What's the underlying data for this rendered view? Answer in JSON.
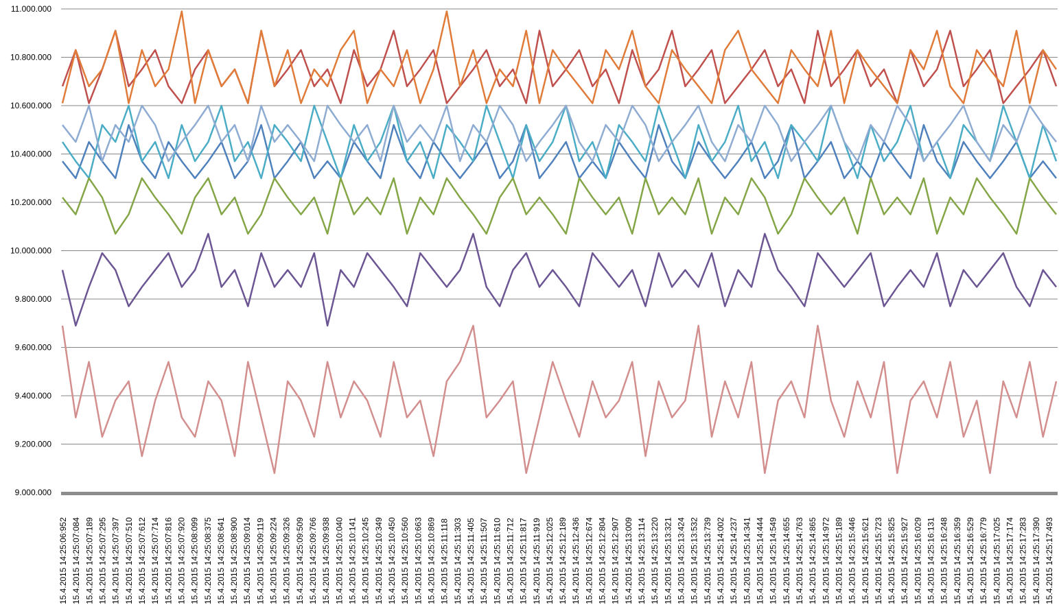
{
  "chart_data": {
    "type": "line",
    "title": "",
    "xlabel": "",
    "ylabel": "",
    "ylim": [
      9000000,
      11000000
    ],
    "grid": true,
    "legend": "none",
    "y_ticks": [
      "9.000.000",
      "9.200.000",
      "9.400.000",
      "9.600.000",
      "9.800.000",
      "10.000.000",
      "10.200.000",
      "10.400.000",
      "10.600.000",
      "10.800.000",
      "11.000.000"
    ],
    "y_tick_values": [
      9000000,
      9200000,
      9400000,
      9600000,
      9800000,
      10000000,
      10200000,
      10400000,
      10600000,
      10800000,
      11000000
    ],
    "x_ticks": [
      "15.4.2015 14:25:06:952",
      "15.4.2015 14:25:07:084",
      "15.4.2015 14:25:07:189",
      "15.4.2015 14:25:07:295",
      "15.4.2015 14:25:07:397",
      "15.4.2015 14:25:07:510",
      "15.4.2015 14:25:07:612",
      "15.4.2015 14:25:07:714",
      "15.4.2015 14:25:07:816",
      "15.4.2015 14:25:07:920",
      "15.4.2015 14:25:08:099",
      "15.4.2015 14:25:08:375",
      "15.4.2015 14:25:08:641",
      "15.4.2015 14:25:08:900",
      "15.4.2015 14:25:09:014",
      "15.4.2015 14:25:09:119",
      "15.4.2015 14:25:09:224",
      "15.4.2015 14:25:09:326",
      "15.4.2015 14:25:09:509",
      "15.4.2015 14:25:09:766",
      "15.4.2015 14:25:09:938",
      "15.4.2015 14:25:10:040",
      "15.4.2015 14:25:10:141",
      "15.4.2015 14:25:10:245",
      "15.4.2015 14:25:10:349",
      "15.4.2015 14:25:10:450",
      "15.4.2015 14:25:10:560",
      "15.4.2015 14:25:10:663",
      "15.4.2015 14:25:10:869",
      "15.4.2015 14:25:11:118",
      "15.4.2015 14:25:11:303",
      "15.4.2015 14:25:11:405",
      "15.4.2015 14:25:11:507",
      "15.4.2015 14:25:11:610",
      "15.4.2015 14:25:11:712",
      "15.4.2015 14:25:11:817",
      "15.4.2015 14:25:11:919",
      "15.4.2015 14:25:12:025",
      "15.4.2015 14:25:12:189",
      "15.4.2015 14:25:12:436",
      "15.4.2015 14:25:12:674",
      "15.4.2015 14:25:12:804",
      "15.4.2015 14:25:12:907",
      "15.4.2015 14:25:13:009",
      "15.4.2015 14:25:13:114",
      "15.4.2015 14:25:13:220",
      "15.4.2015 14:25:13:321",
      "15.4.2015 14:25:13:424",
      "15.4.2015 14:25:13:532",
      "15.4.2015 14:25:13:739",
      "15.4.2015 14:25:14:002",
      "15.4.2015 14:25:14:237",
      "15.4.2015 14:25:14:341",
      "15.4.2015 14:25:14:444",
      "15.4.2015 14:25:14:549",
      "15.4.2015 14:25:14:655",
      "15.4.2015 14:25:14:763",
      "15.4.2015 14:25:14:865",
      "15.4.2015 14:25:14:972",
      "15.4.2015 14:25:15:189",
      "15.4.2015 14:25:15:446",
      "15.4.2015 14:25:15:621",
      "15.4.2015 14:25:15:723",
      "15.4.2015 14:25:15:825",
      "15.4.2015 14:25:15:927",
      "15.4.2015 14:25:16:029",
      "15.4.2015 14:25:16:131",
      "15.4.2015 14:25:16:248",
      "15.4.2015 14:25:16:359",
      "15.4.2015 14:25:16:529",
      "15.4.2015 14:25:16:779",
      "15.4.2015 14:25:17:025",
      "15.4.2015 14:25:17:174",
      "15.4.2015 14:25:17:283",
      "15.4.2015 14:25:17:390",
      "15.4.2015 14:25:17:493"
    ],
    "series": [
      {
        "color": "#c0504d",
        "values": [
          10680000,
          10830000,
          10610000,
          10750000,
          10910000,
          10680000,
          10750000,
          10830000,
          10680000,
          10610000,
          10750000,
          10830000,
          10680000,
          10750000,
          10610000,
          10910000,
          10680000,
          10750000,
          10830000,
          10680000,
          10750000,
          10610000,
          10830000,
          10680000,
          10750000,
          10910000,
          10680000,
          10750000,
          10830000,
          10610000,
          10680000,
          10750000,
          10830000,
          10680000,
          10750000,
          10610000,
          10910000,
          10680000,
          10750000,
          10830000,
          10680000,
          10750000,
          10610000,
          10830000,
          10680000,
          10750000,
          10910000,
          10680000,
          10750000,
          10830000,
          10610000,
          10680000,
          10750000,
          10830000,
          10680000,
          10750000,
          10610000,
          10910000,
          10680000,
          10750000,
          10830000,
          10680000,
          10750000,
          10610000,
          10830000,
          10680000,
          10750000,
          10910000,
          10680000,
          10750000,
          10830000,
          10610000,
          10680000,
          10750000,
          10830000,
          10680000
        ]
      },
      {
        "color": "#e07b39",
        "values": [
          10610000,
          10830000,
          10680000,
          10750000,
          10910000,
          10610000,
          10830000,
          10680000,
          10750000,
          10990000,
          10610000,
          10830000,
          10680000,
          10750000,
          10610000,
          10910000,
          10680000,
          10830000,
          10610000,
          10750000,
          10680000,
          10830000,
          10910000,
          10610000,
          10750000,
          10680000,
          10830000,
          10610000,
          10750000,
          10990000,
          10680000,
          10830000,
          10610000,
          10750000,
          10680000,
          10910000,
          10610000,
          10830000,
          10750000,
          10680000,
          10610000,
          10830000,
          10750000,
          10910000,
          10680000,
          10610000,
          10830000,
          10750000,
          10680000,
          10610000,
          10830000,
          10910000,
          10750000,
          10680000,
          10610000,
          10830000,
          10750000,
          10680000,
          10910000,
          10610000,
          10830000,
          10750000,
          10680000,
          10610000,
          10830000,
          10750000,
          10910000,
          10680000,
          10610000,
          10830000,
          10750000,
          10680000,
          10910000,
          10610000,
          10830000,
          10750000
        ]
      },
      {
        "color": "#4f81bd",
        "values": [
          10370000,
          10300000,
          10450000,
          10370000,
          10300000,
          10520000,
          10370000,
          10300000,
          10450000,
          10370000,
          10300000,
          10370000,
          10450000,
          10300000,
          10370000,
          10520000,
          10300000,
          10370000,
          10450000,
          10300000,
          10370000,
          10300000,
          10450000,
          10370000,
          10300000,
          10520000,
          10370000,
          10300000,
          10450000,
          10370000,
          10300000,
          10370000,
          10450000,
          10300000,
          10370000,
          10520000,
          10300000,
          10370000,
          10450000,
          10300000,
          10370000,
          10300000,
          10450000,
          10370000,
          10300000,
          10520000,
          10370000,
          10300000,
          10450000,
          10370000,
          10300000,
          10370000,
          10450000,
          10300000,
          10370000,
          10520000,
          10300000,
          10370000,
          10450000,
          10300000,
          10370000,
          10300000,
          10450000,
          10370000,
          10300000,
          10520000,
          10370000,
          10300000,
          10450000,
          10370000,
          10300000,
          10370000,
          10450000,
          10300000,
          10370000,
          10300000
        ]
      },
      {
        "color": "#4bacc6",
        "values": [
          10450000,
          10370000,
          10300000,
          10520000,
          10450000,
          10600000,
          10370000,
          10450000,
          10300000,
          10520000,
          10370000,
          10450000,
          10600000,
          10370000,
          10450000,
          10300000,
          10520000,
          10450000,
          10370000,
          10600000,
          10450000,
          10300000,
          10520000,
          10370000,
          10450000,
          10600000,
          10370000,
          10450000,
          10300000,
          10520000,
          10450000,
          10370000,
          10600000,
          10450000,
          10300000,
          10520000,
          10370000,
          10450000,
          10600000,
          10370000,
          10450000,
          10300000,
          10520000,
          10450000,
          10370000,
          10600000,
          10450000,
          10300000,
          10520000,
          10370000,
          10450000,
          10600000,
          10370000,
          10450000,
          10300000,
          10520000,
          10450000,
          10370000,
          10600000,
          10450000,
          10300000,
          10520000,
          10370000,
          10450000,
          10600000,
          10370000,
          10450000,
          10300000,
          10520000,
          10450000,
          10370000,
          10600000,
          10450000,
          10300000,
          10520000,
          10370000
        ]
      },
      {
        "color": "#8eabd2",
        "values": [
          10520000,
          10450000,
          10600000,
          10370000,
          10520000,
          10450000,
          10600000,
          10520000,
          10370000,
          10450000,
          10520000,
          10600000,
          10450000,
          10520000,
          10370000,
          10600000,
          10450000,
          10520000,
          10450000,
          10370000,
          10600000,
          10520000,
          10450000,
          10520000,
          10370000,
          10600000,
          10450000,
          10520000,
          10450000,
          10600000,
          10370000,
          10520000,
          10450000,
          10600000,
          10520000,
          10370000,
          10450000,
          10520000,
          10600000,
          10450000,
          10370000,
          10520000,
          10450000,
          10600000,
          10520000,
          10370000,
          10450000,
          10520000,
          10600000,
          10450000,
          10370000,
          10520000,
          10450000,
          10600000,
          10520000,
          10370000,
          10450000,
          10520000,
          10600000,
          10450000,
          10370000,
          10520000,
          10450000,
          10600000,
          10520000,
          10370000,
          10450000,
          10520000,
          10600000,
          10450000,
          10370000,
          10520000,
          10450000,
          10600000,
          10520000,
          10450000
        ]
      },
      {
        "color": "#84a647",
        "values": [
          10220000,
          10150000,
          10300000,
          10220000,
          10070000,
          10150000,
          10300000,
          10220000,
          10150000,
          10070000,
          10220000,
          10300000,
          10150000,
          10220000,
          10070000,
          10150000,
          10300000,
          10220000,
          10150000,
          10220000,
          10070000,
          10300000,
          10150000,
          10220000,
          10150000,
          10300000,
          10070000,
          10220000,
          10150000,
          10300000,
          10220000,
          10150000,
          10070000,
          10220000,
          10300000,
          10150000,
          10220000,
          10150000,
          10070000,
          10300000,
          10220000,
          10150000,
          10220000,
          10070000,
          10300000,
          10150000,
          10220000,
          10150000,
          10300000,
          10070000,
          10220000,
          10150000,
          10300000,
          10220000,
          10070000,
          10150000,
          10300000,
          10220000,
          10150000,
          10220000,
          10070000,
          10300000,
          10150000,
          10220000,
          10150000,
          10300000,
          10070000,
          10220000,
          10150000,
          10300000,
          10220000,
          10150000,
          10070000,
          10300000,
          10220000,
          10150000
        ]
      },
      {
        "color": "#6b5593",
        "values": [
          9920000,
          9690000,
          9850000,
          9990000,
          9920000,
          9770000,
          9850000,
          9920000,
          9990000,
          9850000,
          9920000,
          10070000,
          9850000,
          9920000,
          9770000,
          9990000,
          9850000,
          9920000,
          9850000,
          9990000,
          9690000,
          9920000,
          9850000,
          9990000,
          9920000,
          9850000,
          9770000,
          9990000,
          9920000,
          9850000,
          9920000,
          10070000,
          9850000,
          9770000,
          9920000,
          9990000,
          9850000,
          9920000,
          9850000,
          9770000,
          9990000,
          9920000,
          9850000,
          9920000,
          9770000,
          9990000,
          9850000,
          9920000,
          9850000,
          9990000,
          9770000,
          9920000,
          9850000,
          10070000,
          9920000,
          9850000,
          9770000,
          9990000,
          9920000,
          9850000,
          9920000,
          9990000,
          9770000,
          9850000,
          9920000,
          9850000,
          9990000,
          9770000,
          9920000,
          9850000,
          9920000,
          9990000,
          9850000,
          9770000,
          9920000,
          9850000
        ]
      },
      {
        "color": "#d38e8e",
        "values": [
          9690000,
          9310000,
          9540000,
          9230000,
          9380000,
          9460000,
          9150000,
          9380000,
          9540000,
          9310000,
          9230000,
          9460000,
          9380000,
          9150000,
          9540000,
          9310000,
          9080000,
          9460000,
          9380000,
          9230000,
          9540000,
          9310000,
          9460000,
          9380000,
          9230000,
          9540000,
          9310000,
          9380000,
          9150000,
          9460000,
          9540000,
          9690000,
          9310000,
          9380000,
          9460000,
          9080000,
          9310000,
          9540000,
          9380000,
          9230000,
          9460000,
          9310000,
          9380000,
          9540000,
          9150000,
          9460000,
          9310000,
          9380000,
          9690000,
          9230000,
          9460000,
          9310000,
          9540000,
          9080000,
          9380000,
          9460000,
          9310000,
          9690000,
          9380000,
          9230000,
          9460000,
          9310000,
          9540000,
          9080000,
          9380000,
          9460000,
          9310000,
          9540000,
          9230000,
          9380000,
          9080000,
          9460000,
          9310000,
          9540000,
          9230000,
          9460000
        ]
      }
    ]
  }
}
